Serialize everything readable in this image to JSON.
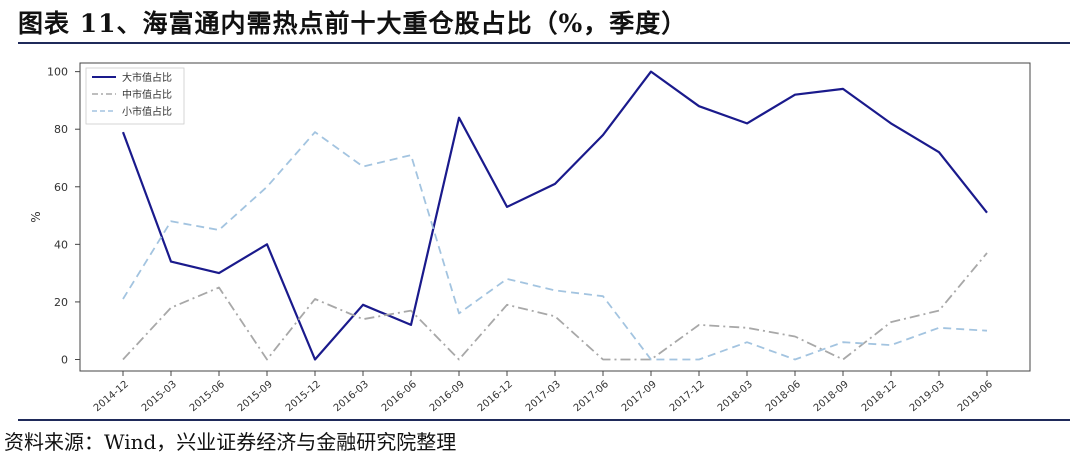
{
  "title": "图表 11、海富通内需热点前十大重仓股占比（%，季度）",
  "source": "资料来源：Wind，兴业证券经济与金融研究院整理",
  "chart_data": {
    "type": "line",
    "ylabel": "%",
    "ylim": [
      -4,
      103
    ],
    "yticks": [
      0,
      20,
      40,
      60,
      80,
      100
    ],
    "legend_position": "top-left",
    "grid": false,
    "categories": [
      "2014-12",
      "2015-03",
      "2015-06",
      "2015-09",
      "2015-12",
      "2016-03",
      "2016-06",
      "2016-09",
      "2016-12",
      "2017-03",
      "2017-06",
      "2017-09",
      "2017-12",
      "2018-03",
      "2018-06",
      "2018-09",
      "2018-12",
      "2019-03",
      "2019-06"
    ],
    "series": [
      {
        "name": "大市值占比",
        "color": "#1a1a8c",
        "dash": "solid",
        "values": [
          79,
          34,
          30,
          40,
          0,
          19,
          12,
          84,
          53,
          61,
          78,
          100,
          88,
          82,
          92,
          94,
          82,
          72,
          51
        ]
      },
      {
        "name": "中市值占比",
        "color": "#a8a8a8",
        "dash": "dashdot",
        "values": [
          0,
          18,
          25,
          0,
          21,
          14,
          17,
          0,
          19,
          15,
          0,
          0,
          12,
          11,
          8,
          0,
          13,
          17,
          37
        ]
      },
      {
        "name": "小市值占比",
        "color": "#a3c4e0",
        "dash": "dashed",
        "values": [
          21,
          48,
          45,
          60,
          79,
          67,
          71,
          16,
          28,
          24,
          22,
          0,
          0,
          6,
          0,
          6,
          5,
          11,
          10
        ]
      }
    ]
  }
}
